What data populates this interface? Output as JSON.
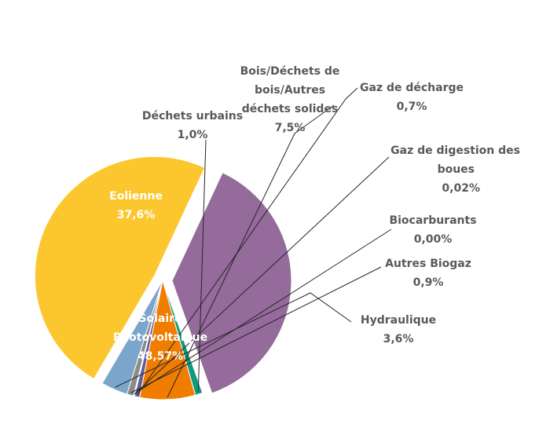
{
  "chart_data": {
    "type": "pie",
    "title": "",
    "slices": [
      {
        "name": "Eolienne",
        "value": 37.6,
        "label": "37,6%",
        "color": "#946b9b"
      },
      {
        "name": "Déchets urbains",
        "value": 1.0,
        "label": "1,0%",
        "color": "#139a7e"
      },
      {
        "name": "Bois/Déchets de bois/Autres déchets solides",
        "value": 7.5,
        "label": "7,5%",
        "color": "#f07d00"
      },
      {
        "name": "Gaz de décharge",
        "value": 0.7,
        "label": "0,7%",
        "color": "#5f5f9e"
      },
      {
        "name": "Gaz de digestion des boues",
        "value": 0.02,
        "label": "0,02%",
        "color": "#b0b0b0"
      },
      {
        "name": "Biocarburants",
        "value": 0.0,
        "label": "0,00%",
        "color": "#d4d4d4"
      },
      {
        "name": "Autres Biogaz",
        "value": 0.9,
        "label": "0,9%",
        "color": "#8b8b8b"
      },
      {
        "name": "Hydraulique",
        "value": 3.6,
        "label": "3,6%",
        "color": "#7aa6cc"
      },
      {
        "name": "Solaire Photovoltaique",
        "value": 48.57,
        "label": "48,57%",
        "color": "#fcc72e"
      }
    ],
    "label_lines": {
      "Eolienne": [
        "Eolienne"
      ],
      "Déchets urbains": [
        "Déchets urbains"
      ],
      "Bois/Déchets de bois/Autres déchets solides": [
        "Bois/Déchets de",
        "bois/Autres",
        "déchets solides"
      ],
      "Gaz de décharge": [
        "Gaz de décharge"
      ],
      "Gaz de digestion des boues": [
        "Gaz de digestion des",
        "boues"
      ],
      "Biocarburants": [
        "Biocarburants"
      ],
      "Autres Biogaz": [
        "Autres Biogaz"
      ],
      "Hydraulique": [
        "Hydraulique"
      ],
      "Solaire Photovoltaique": [
        "Solaire",
        "Photovoltaique"
      ]
    },
    "legend": "none"
  }
}
